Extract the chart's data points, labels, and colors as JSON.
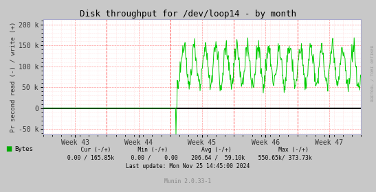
{
  "title": "Disk throughput for /dev/loop14 - by month",
  "ylabel": "Pr second read (-) / write (+)",
  "xlabel_weeks": [
    "Week 43",
    "Week 44",
    "Week 45",
    "Week 46",
    "Week 47"
  ],
  "ylim": [
    -62500,
    212500
  ],
  "yticks": [
    -50000,
    0,
    50000,
    100000,
    150000,
    200000
  ],
  "ytick_labels": [
    "-50 k",
    "0",
    "50 k",
    "100 k",
    "150 k",
    "200 k"
  ],
  "background_color": "#c8c8c8",
  "plot_bg_color": "#ffffff",
  "grid_major_color": "#ff9999",
  "grid_minor_color": "#ffcccc",
  "line_color": "#00cc00",
  "zero_line_color": "#000000",
  "vline_color": "#ff4444",
  "legend_label": "Bytes",
  "legend_color": "#00aa00",
  "footer_update": "Last update: Mon Nov 25 14:45:00 2024",
  "footer_munin": "Munin 2.0.33-1",
  "rrdtool_label": "RRDTOOL / TOBI OETIKER",
  "figwidth": 5.47,
  "figheight": 2.8,
  "dpi": 100
}
